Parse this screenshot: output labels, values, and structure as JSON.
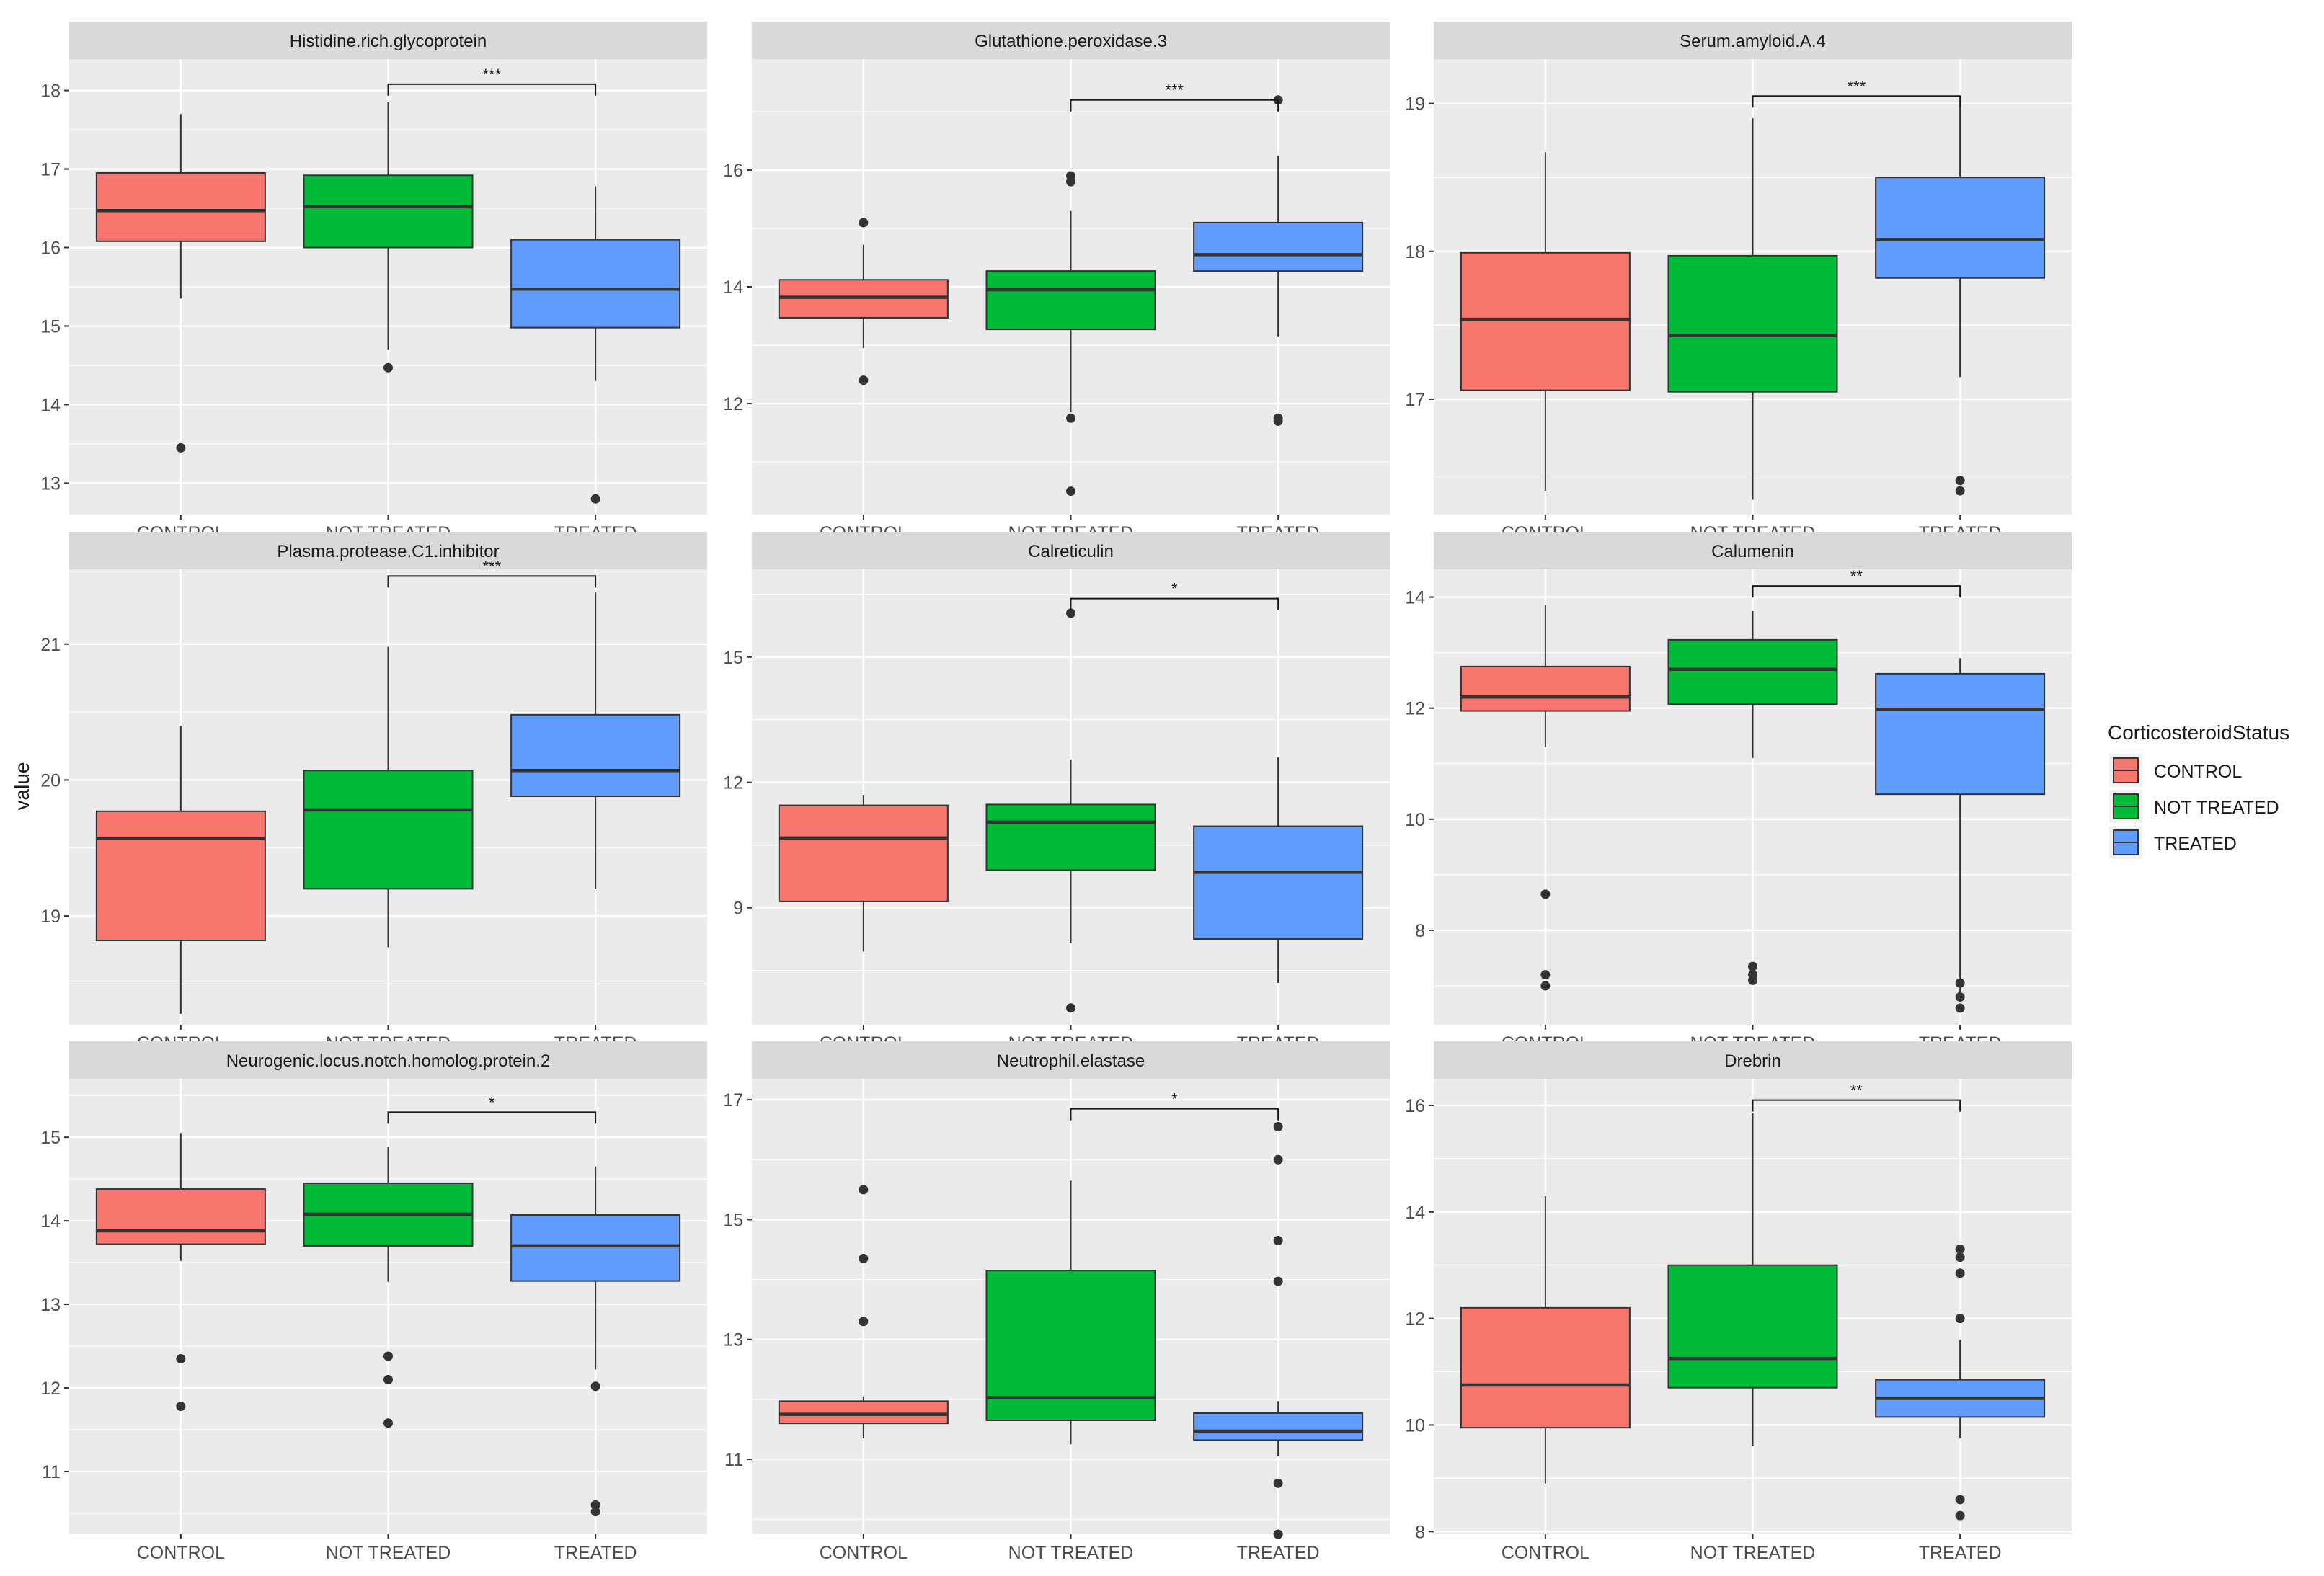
{
  "figure": {
    "y_axis_label": "value",
    "legend_title": "CorticosteroidStatus",
    "legend_entries": [
      "CONTROL",
      "NOT TREATED",
      "TREATED"
    ]
  },
  "colors": {
    "CONTROL": "#F8766D",
    "NOT TREATED": "#00BA38",
    "TREATED": "#619CFF",
    "panel_bg": "#EBEBEB",
    "strip_bg": "#D9D9D9",
    "grid": "#FFFFFF",
    "text": "#4D4D4D",
    "title_text": "#1A1A1A"
  },
  "chart_data": [
    {
      "type": "box",
      "title": "Histidine.rich.glycoprotein",
      "categories": [
        "CONTROL",
        "NOT TREATED",
        "TREATED"
      ],
      "ylim": [
        12.6,
        18.4
      ],
      "yticks": [
        13,
        14,
        15,
        16,
        17,
        18
      ],
      "boxes": [
        {
          "group": "CONTROL",
          "whisker_low": 15.35,
          "q1": 16.08,
          "median": 16.47,
          "q3": 16.95,
          "whisker_high": 17.7,
          "outliers": [
            13.45
          ]
        },
        {
          "group": "NOT TREATED",
          "whisker_low": 14.7,
          "q1": 16.0,
          "median": 16.52,
          "q3": 16.92,
          "whisker_high": 17.85,
          "outliers": [
            14.47
          ]
        },
        {
          "group": "TREATED",
          "whisker_low": 14.3,
          "q1": 14.98,
          "median": 15.47,
          "q3": 16.1,
          "whisker_high": 16.78,
          "outliers": [
            12.8
          ]
        }
      ],
      "significance": {
        "from": "NOT TREATED",
        "to": "TREATED",
        "label": "***",
        "y": 18.08
      }
    },
    {
      "type": "box",
      "title": "Glutathione.peroxidase.3",
      "categories": [
        "CONTROL",
        "NOT TREATED",
        "TREATED"
      ],
      "ylim": [
        10.1,
        17.9
      ],
      "yticks": [
        12,
        14,
        16
      ],
      "boxes": [
        {
          "group": "CONTROL",
          "whisker_low": 12.95,
          "q1": 13.47,
          "median": 13.82,
          "q3": 14.12,
          "whisker_high": 14.72,
          "outliers": [
            15.1,
            12.4
          ]
        },
        {
          "group": "NOT TREATED",
          "whisker_low": 11.85,
          "q1": 13.27,
          "median": 13.95,
          "q3": 14.27,
          "whisker_high": 15.3,
          "outliers": [
            15.9,
            15.8,
            11.75,
            10.5
          ]
        },
        {
          "group": "TREATED",
          "whisker_low": 13.15,
          "q1": 14.27,
          "median": 14.55,
          "q3": 15.1,
          "whisker_high": 16.25,
          "outliers": [
            17.2,
            11.75,
            11.7
          ]
        }
      ],
      "significance": {
        "from": "NOT TREATED",
        "to": "TREATED",
        "label": "***",
        "y": 17.2
      }
    },
    {
      "type": "box",
      "title": "Serum.amyloid.A.4",
      "categories": [
        "CONTROL",
        "NOT TREATED",
        "TREATED"
      ],
      "ylim": [
        16.22,
        19.3
      ],
      "yticks": [
        17,
        18,
        19
      ],
      "boxes": [
        {
          "group": "CONTROL",
          "whisker_low": 16.38,
          "q1": 17.06,
          "median": 17.54,
          "q3": 17.99,
          "whisker_high": 18.67,
          "outliers": []
        },
        {
          "group": "NOT TREATED",
          "whisker_low": 16.32,
          "q1": 17.05,
          "median": 17.43,
          "q3": 17.97,
          "whisker_high": 18.9,
          "outliers": []
        },
        {
          "group": "TREATED",
          "whisker_low": 17.15,
          "q1": 17.82,
          "median": 18.08,
          "q3": 18.5,
          "whisker_high": 18.98,
          "outliers": [
            16.45,
            16.38
          ]
        }
      ],
      "significance": {
        "from": "NOT TREATED",
        "to": "TREATED",
        "label": "***",
        "y": 19.05
      }
    },
    {
      "type": "box",
      "title": "Plasma.protease.C1.inhibitor",
      "categories": [
        "CONTROL",
        "NOT TREATED",
        "TREATED"
      ],
      "ylim": [
        18.2,
        21.55
      ],
      "yticks": [
        19,
        20,
        21
      ],
      "boxes": [
        {
          "group": "CONTROL",
          "whisker_low": 18.28,
          "q1": 18.82,
          "median": 19.57,
          "q3": 19.77,
          "whisker_high": 20.4,
          "outliers": []
        },
        {
          "group": "NOT TREATED",
          "whisker_low": 18.77,
          "q1": 19.2,
          "median": 19.78,
          "q3": 20.07,
          "whisker_high": 20.98,
          "outliers": []
        },
        {
          "group": "TREATED",
          "whisker_low": 19.2,
          "q1": 19.88,
          "median": 20.07,
          "q3": 20.48,
          "whisker_high": 21.38,
          "outliers": []
        }
      ],
      "significance": {
        "from": "NOT TREATED",
        "to": "TREATED",
        "label": "***",
        "y": 21.5
      }
    },
    {
      "type": "box",
      "title": "Calreticulin",
      "categories": [
        "CONTROL",
        "NOT TREATED",
        "TREATED"
      ],
      "ylim": [
        6.2,
        17.1
      ],
      "yticks": [
        9,
        12,
        15
      ],
      "boxes": [
        {
          "group": "CONTROL",
          "whisker_low": 7.95,
          "q1": 9.15,
          "median": 10.67,
          "q3": 11.45,
          "whisker_high": 11.7,
          "outliers": []
        },
        {
          "group": "NOT TREATED",
          "whisker_low": 8.15,
          "q1": 9.9,
          "median": 11.05,
          "q3": 11.47,
          "whisker_high": 12.55,
          "outliers": [
            16.05,
            6.6
          ]
        },
        {
          "group": "TREATED",
          "whisker_low": 7.2,
          "q1": 8.25,
          "median": 9.85,
          "q3": 10.95,
          "whisker_high": 12.6,
          "outliers": []
        }
      ],
      "significance": {
        "from": "NOT TREATED",
        "to": "TREATED",
        "label": "*",
        "y": 16.4
      }
    },
    {
      "type": "box",
      "title": "Calumenin",
      "categories": [
        "CONTROL",
        "NOT TREATED",
        "TREATED"
      ],
      "ylim": [
        6.3,
        14.5
      ],
      "yticks": [
        8,
        10,
        12,
        14
      ],
      "boxes": [
        {
          "group": "CONTROL",
          "whisker_low": 11.3,
          "q1": 11.95,
          "median": 12.2,
          "q3": 12.75,
          "whisker_high": 13.85,
          "outliers": [
            8.65,
            7.2,
            7.0
          ]
        },
        {
          "group": "NOT TREATED",
          "whisker_low": 11.1,
          "q1": 12.07,
          "median": 12.7,
          "q3": 13.23,
          "whisker_high": 13.75,
          "outliers": [
            7.35,
            7.2,
            7.1
          ]
        },
        {
          "group": "TREATED",
          "whisker_low": 6.85,
          "q1": 10.45,
          "median": 11.98,
          "q3": 12.62,
          "whisker_high": 12.9,
          "outliers": [
            7.05,
            6.8,
            6.6
          ]
        }
      ],
      "significance": {
        "from": "NOT TREATED",
        "to": "TREATED",
        "label": "**",
        "y": 14.2
      }
    },
    {
      "type": "box",
      "title": "Neurogenic.locus.notch.homolog.protein.2",
      "categories": [
        "CONTROL",
        "NOT TREATED",
        "TREATED"
      ],
      "ylim": [
        10.25,
        15.7
      ],
      "yticks": [
        11,
        12,
        13,
        14,
        15
      ],
      "boxes": [
        {
          "group": "CONTROL",
          "whisker_low": 13.52,
          "q1": 13.72,
          "median": 13.88,
          "q3": 14.38,
          "whisker_high": 15.05,
          "outliers": [
            12.35,
            11.78
          ]
        },
        {
          "group": "NOT TREATED",
          "whisker_low": 13.27,
          "q1": 13.7,
          "median": 14.08,
          "q3": 14.45,
          "whisker_high": 14.88,
          "outliers": [
            12.38,
            12.1,
            11.58
          ]
        },
        {
          "group": "TREATED",
          "whisker_low": 12.22,
          "q1": 13.28,
          "median": 13.7,
          "q3": 14.07,
          "whisker_high": 14.65,
          "outliers": [
            12.02,
            10.6,
            10.52
          ]
        }
      ],
      "significance": {
        "from": "NOT TREATED",
        "to": "TREATED",
        "label": "*",
        "y": 15.3
      }
    },
    {
      "type": "box",
      "title": "Neutrophil.elastase",
      "categories": [
        "CONTROL",
        "NOT TREATED",
        "TREATED"
      ],
      "ylim": [
        9.75,
        17.35
      ],
      "yticks": [
        11,
        13,
        15,
        17
      ],
      "boxes": [
        {
          "group": "CONTROL",
          "whisker_low": 11.35,
          "q1": 11.6,
          "median": 11.75,
          "q3": 11.97,
          "whisker_high": 12.05,
          "outliers": [
            15.5,
            14.35,
            13.3
          ]
        },
        {
          "group": "NOT TREATED",
          "whisker_low": 11.25,
          "q1": 11.65,
          "median": 12.03,
          "q3": 14.15,
          "whisker_high": 15.65,
          "outliers": []
        },
        {
          "group": "TREATED",
          "whisker_low": 11.05,
          "q1": 11.32,
          "median": 11.47,
          "q3": 11.77,
          "whisker_high": 11.97,
          "outliers": [
            16.55,
            16.0,
            14.65,
            13.97,
            10.6,
            9.75
          ]
        }
      ],
      "significance": {
        "from": "NOT TREATED",
        "to": "TREATED",
        "label": "*",
        "y": 16.85
      }
    },
    {
      "type": "box",
      "title": "Drebrin",
      "categories": [
        "CONTROL",
        "NOT TREATED",
        "TREATED"
      ],
      "ylim": [
        7.95,
        16.5
      ],
      "yticks": [
        8,
        10,
        12,
        14,
        16
      ],
      "boxes": [
        {
          "group": "CONTROL",
          "whisker_low": 8.9,
          "q1": 9.95,
          "median": 10.75,
          "q3": 12.2,
          "whisker_high": 14.3,
          "outliers": []
        },
        {
          "group": "NOT TREATED",
          "whisker_low": 9.6,
          "q1": 10.7,
          "median": 11.25,
          "q3": 13.0,
          "whisker_high": 15.85,
          "outliers": []
        },
        {
          "group": "TREATED",
          "whisker_low": 9.75,
          "q1": 10.15,
          "median": 10.5,
          "q3": 10.85,
          "whisker_high": 11.6,
          "outliers": [
            13.3,
            13.15,
            12.85,
            12.0,
            8.6,
            8.3
          ]
        }
      ],
      "significance": {
        "from": "NOT TREATED",
        "to": "TREATED",
        "label": "**",
        "y": 16.1
      }
    }
  ]
}
